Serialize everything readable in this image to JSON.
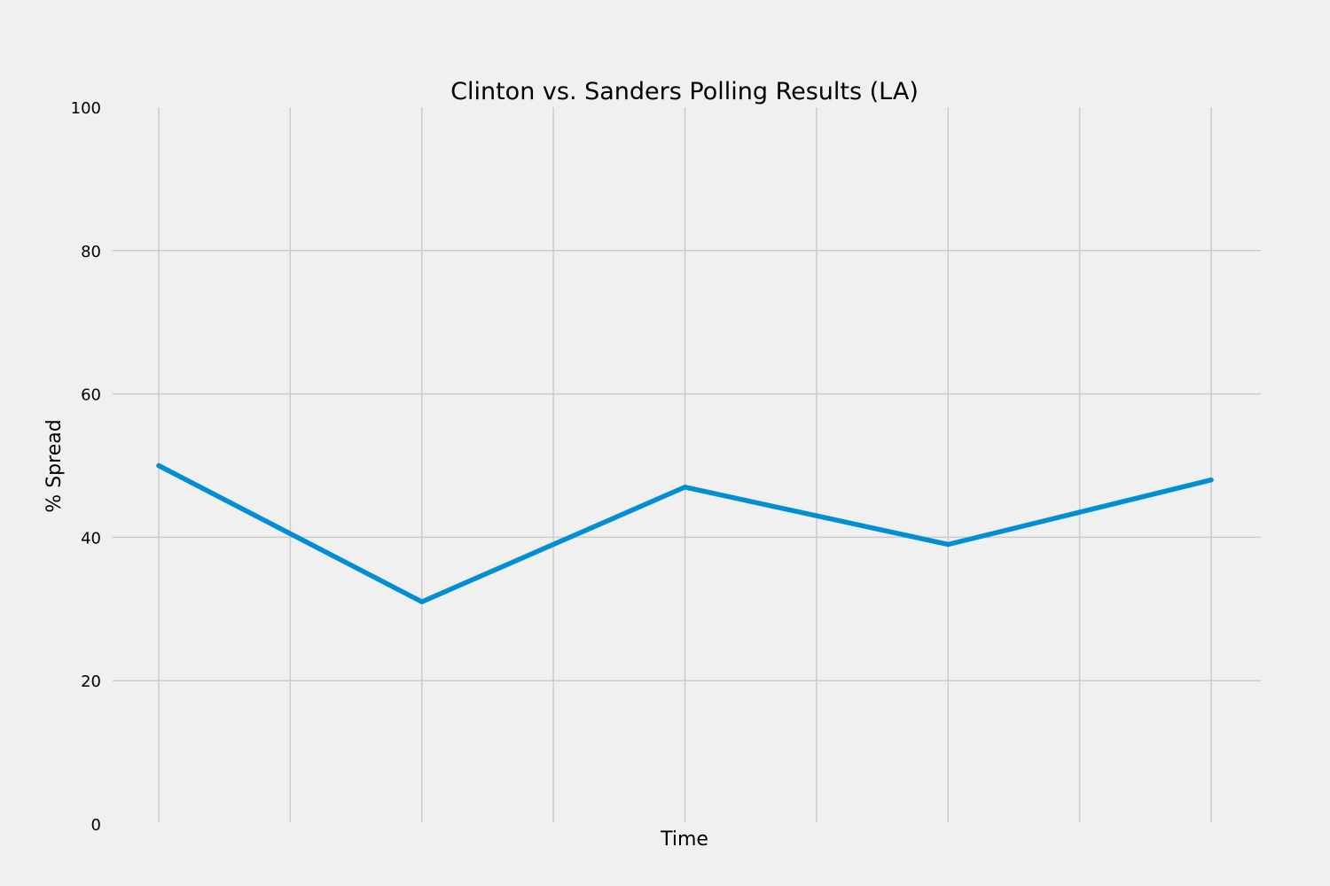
{
  "chart_data": {
    "type": "line",
    "title": "Clinton vs. Sanders Polling Results (LA)",
    "xlabel": "Time",
    "ylabel": "% Spread",
    "x": [
      0,
      1,
      2,
      3,
      4
    ],
    "series": [
      {
        "values": [
          50,
          31,
          47,
          39,
          48
        ],
        "color": "#008fd5"
      }
    ],
    "xlim": [
      0,
      4
    ],
    "ylim": [
      0,
      100
    ],
    "yticks": [
      0,
      20,
      40,
      60,
      80,
      100
    ],
    "x_grid_count": 9,
    "grid": true,
    "legend": "none",
    "colors": {
      "background": "#f0f0f0",
      "grid": "#cbcbcb"
    }
  }
}
